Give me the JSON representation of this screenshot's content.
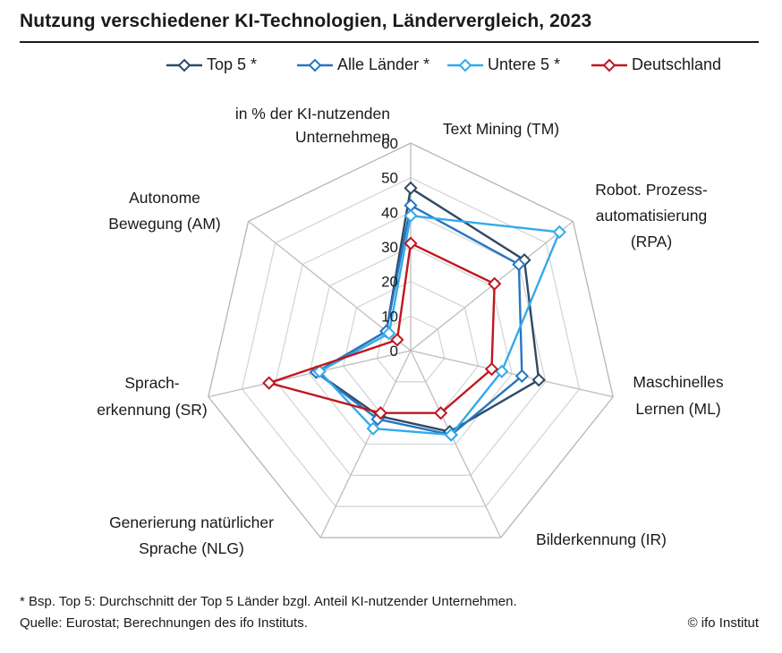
{
  "title": "Nutzung verschiedener KI-Technologien, Ländervergleich, 2023",
  "footnote": "* Bsp. Top 5: Durchschnitt der Top 5 Länder bzgl. Anteil KI-nutzender Unternehmen.",
  "source": "Quelle: Eurostat; Berechnungen des ifo Instituts.",
  "copyright": "© ifo Institut",
  "chart_data": {
    "type": "radar",
    "unit_label": [
      "in % der KI-nutzenden",
      "Unternehmen"
    ],
    "axes": [
      {
        "label": [
          "Text Mining (TM)"
        ]
      },
      {
        "label": [
          "Robot. Prozess-",
          "automatisierung",
          "(RPA)"
        ]
      },
      {
        "label": [
          "Maschinelles",
          "Lernen (ML)"
        ]
      },
      {
        "label": [
          "Bilderkennung (IR)"
        ]
      },
      {
        "label": [
          "Generierung natürlicher",
          "Sprache (NLG)"
        ]
      },
      {
        "label": [
          "Sprach-",
          "erkennung (SR)"
        ]
      },
      {
        "label": [
          "Autonome",
          "Bewegung (AM)"
        ]
      }
    ],
    "ticks": [
      "0",
      "10",
      "20",
      "30",
      "40",
      "50",
      "60"
    ],
    "rmax": 60,
    "grid": true,
    "legend_position": "top",
    "series": [
      {
        "name": "Top 5 *",
        "color": "#2e4a66",
        "values": [
          47,
          42,
          38,
          26,
          21,
          28,
          9
        ]
      },
      {
        "name": "Alle Länder *",
        "color": "#2676c0",
        "values": [
          42,
          40,
          33,
          27,
          22,
          28,
          9
        ]
      },
      {
        "name": "Untere 5 *",
        "color": "#33aaea",
        "values": [
          39,
          55,
          27,
          27,
          25,
          27,
          8
        ]
      },
      {
        "name": "Deutschland",
        "color": "#c0171f",
        "values": [
          31,
          31,
          24,
          20,
          20,
          42,
          5
        ]
      }
    ]
  }
}
